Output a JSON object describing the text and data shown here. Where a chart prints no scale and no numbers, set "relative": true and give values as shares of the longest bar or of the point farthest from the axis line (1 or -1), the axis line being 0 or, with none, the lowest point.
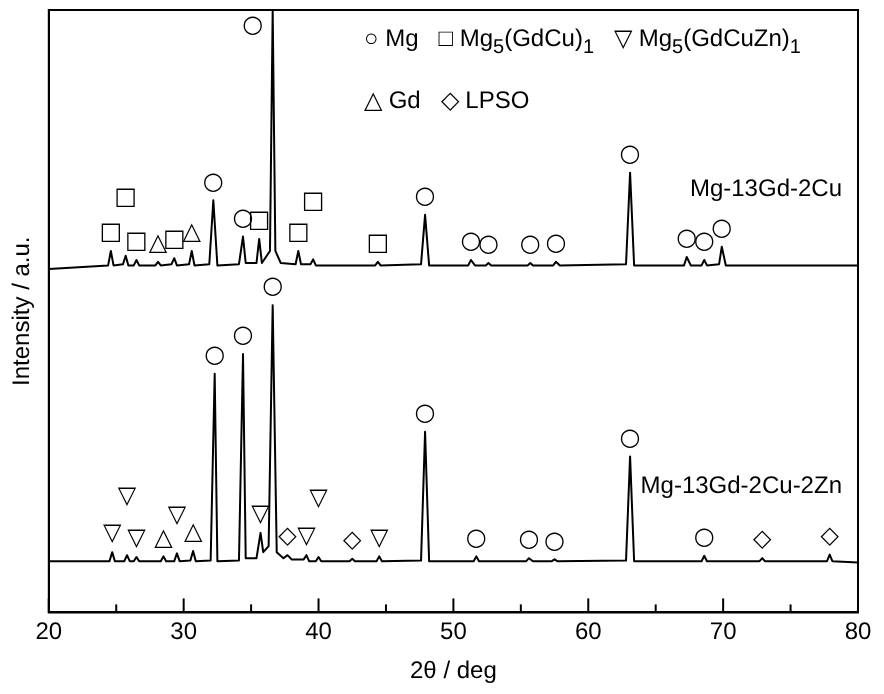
{
  "chart_data": {
    "type": "line",
    "relative": true,
    "xlabel": "2θ / deg",
    "ylabel": "Intensity / a.u.",
    "xlim": [
      20,
      80
    ],
    "xticks": [
      20,
      {
        "value": 25,
        "label": null
      },
      30,
      {
        "value": 35,
        "label": null
      },
      40,
      {
        "value": 45,
        "label": null
      },
      50,
      {
        "value": 55,
        "label": null
      },
      60,
      {
        "value": 65,
        "label": null
      },
      70,
      {
        "value": 75,
        "label": null
      },
      80
    ],
    "legend": false,
    "marker": "none",
    "line_style": "solid",
    "series": [
      {
        "name": "Mg-13Gd-2Cu",
        "color": "#000000",
        "x": [
          20,
          24.4,
          24.6,
          24.8,
          25.5,
          25.7,
          25.9,
          26.3,
          26.5,
          26.7,
          27.9,
          28.1,
          28.3,
          29.1,
          29.3,
          29.5,
          30.4,
          30.6,
          30.8,
          31.9,
          32.2,
          32.5,
          34.1,
          34.4,
          34.6,
          35.4,
          35.6,
          35.8,
          36.4,
          36.6,
          36.8,
          37.2,
          38.3,
          38.5,
          38.7,
          39.4,
          39.6,
          39.8,
          44.2,
          44.4,
          44.6,
          47.6,
          47.9,
          48.2,
          51.1,
          51.3,
          51.6,
          52.4,
          52.6,
          52.8,
          55.5,
          55.7,
          55.9,
          57.4,
          57.6,
          57.9,
          62.8,
          63.1,
          63.4,
          67.1,
          67.3,
          67.6,
          68.4,
          68.6,
          68.8,
          69.7,
          69.9,
          70.2,
          80
        ],
        "values": [
          0.57,
          0.576,
          0.6,
          0.576,
          0.578,
          0.592,
          0.576,
          0.576,
          0.585,
          0.576,
          0.576,
          0.582,
          0.576,
          0.578,
          0.588,
          0.576,
          0.578,
          0.6,
          0.576,
          0.578,
          0.684,
          0.576,
          0.578,
          0.624,
          0.58,
          0.58,
          0.62,
          0.58,
          0.6,
          1,
          0.6,
          0.58,
          0.578,
          0.6,
          0.578,
          0.578,
          0.586,
          0.576,
          0.576,
          0.582,
          0.576,
          0.578,
          0.66,
          0.576,
          0.576,
          0.585,
          0.576,
          0.576,
          0.58,
          0.576,
          0.576,
          0.58,
          0.576,
          0.576,
          0.582,
          0.576,
          0.578,
          0.73,
          0.576,
          0.576,
          0.59,
          0.576,
          0.576,
          0.585,
          0.576,
          0.578,
          0.607,
          0.576,
          0.576
        ]
      },
      {
        "name": "Mg-13Gd-2Cu-2Zn",
        "color": "#000000",
        "x": [
          20,
          24.5,
          24.7,
          24.9,
          25.6,
          25.8,
          26,
          26.3,
          26.5,
          26.7,
          28.3,
          28.5,
          28.7,
          29.3,
          29.5,
          29.7,
          30.5,
          30.7,
          30.9,
          32,
          32.3,
          32.5,
          34.1,
          34.4,
          34.6,
          35.4,
          35.7,
          35.9,
          36.3,
          36.6,
          36.9,
          37.4,
          37.7,
          38,
          38.9,
          39.1,
          39.3,
          39.8,
          40,
          40.2,
          42.3,
          42.5,
          42.7,
          44.3,
          44.5,
          44.7,
          47.6,
          47.9,
          48.2,
          51.5,
          51.7,
          51.9,
          55.4,
          55.6,
          55.9,
          57.3,
          57.5,
          57.7,
          62.8,
          63.1,
          63.4,
          68.4,
          68.6,
          68.8,
          72.7,
          72.9,
          73.1,
          77.7,
          77.9,
          78.1,
          80
        ],
        "values": [
          0.085,
          0.085,
          0.1,
          0.085,
          0.085,
          0.095,
          0.085,
          0.085,
          0.092,
          0.085,
          0.085,
          0.093,
          0.085,
          0.085,
          0.098,
          0.085,
          0.086,
          0.102,
          0.085,
          0.086,
          0.396,
          0.085,
          0.086,
          0.429,
          0.09,
          0.09,
          0.132,
          0.1,
          0.11,
          0.51,
          0.1,
          0.09,
          0.095,
          0.088,
          0.088,
          0.095,
          0.085,
          0.085,
          0.092,
          0.085,
          0.085,
          0.089,
          0.085,
          0.085,
          0.093,
          0.085,
          0.086,
          0.3,
          0.085,
          0.085,
          0.093,
          0.085,
          0.085,
          0.09,
          0.085,
          0.085,
          0.088,
          0.085,
          0.086,
          0.259,
          0.085,
          0.085,
          0.094,
          0.085,
          0.085,
          0.09,
          0.085,
          0.085,
          0.096,
          0.085,
          0.083
        ]
      }
    ],
    "annotations": [
      "○ Mg",
      "□ Mg$_{5}$(GdCu)$_{1}$",
      "▽ Mg$_{5}$(GdCuZn)$_{1}$",
      "△ Gd",
      "◇ LPSO",
      {
        "text": "□",
        "x": 24.6,
        "y": 0.6
      },
      {
        "text": "□",
        "x": 25.7,
        "y": 0.592
      },
      {
        "text": "□",
        "x": 26.5,
        "y": 0.585
      },
      {
        "text": "△",
        "x": 28.1,
        "y": 0.582
      },
      {
        "text": "□",
        "x": 29.3,
        "y": 0.588
      },
      {
        "text": "△",
        "x": 30.6,
        "y": 0.6
      },
      {
        "text": "○",
        "x": 32.2,
        "y": 0.684
      },
      {
        "text": "○",
        "x": 34.4,
        "y": 0.624
      },
      {
        "text": "□",
        "x": 35.6,
        "y": 0.62
      },
      {
        "text": "○",
        "x": 36.6,
        "y": 1
      },
      {
        "text": "□",
        "x": 38.5,
        "y": 0.6
      },
      {
        "text": "□",
        "x": 39.6,
        "y": 0.586
      },
      {
        "text": "□",
        "x": 44.4,
        "y": 0.582
      },
      {
        "text": "○",
        "x": 47.9,
        "y": 0.66
      },
      {
        "text": "○",
        "x": 51.3,
        "y": 0.585
      },
      {
        "text": "○",
        "x": 52.6,
        "y": 0.58
      },
      {
        "text": "○",
        "x": 55.7,
        "y": 0.58
      },
      {
        "text": "○",
        "x": 57.6,
        "y": 0.582
      },
      {
        "text": "○",
        "x": 63.1,
        "y": 0.73
      },
      {
        "text": "○",
        "x": 67.3,
        "y": 0.59
      },
      {
        "text": "○",
        "x": 68.6,
        "y": 0.585
      },
      {
        "text": "○",
        "x": 69.9,
        "y": 0.607
      },
      {
        "text": "○",
        "x": 36.6,
        "y": 0.51
      },
      {
        "text": "○",
        "x": 32.3,
        "y": 0.396
      },
      {
        "text": "○",
        "x": 34.4,
        "y": 0.429
      },
      {
        "text": "▽",
        "x": 24.7,
        "y": 0.1
      },
      {
        "text": "▽",
        "x": 25.8,
        "y": 0.095
      },
      {
        "text": "▽",
        "x": 26.5,
        "y": 0.092
      },
      {
        "text": "△",
        "x": 28.5,
        "y": 0.093
      },
      {
        "text": "▽",
        "x": 29.5,
        "y": 0.098
      },
      {
        "text": "△",
        "x": 30.7,
        "y": 0.102
      },
      {
        "text": "▽",
        "x": 35.7,
        "y": 0.132
      },
      {
        "text": "◇",
        "x": 37.7,
        "y": 0.095
      },
      {
        "text": "▽",
        "x": 39.1,
        "y": 0.095
      },
      {
        "text": "▽",
        "x": 40,
        "y": 0.092
      },
      {
        "text": "◇",
        "x": 42.5,
        "y": 0.089
      },
      {
        "text": "▽",
        "x": 44.5,
        "y": 0.093
      },
      {
        "text": "○",
        "x": 47.9,
        "y": 0.3
      },
      {
        "text": "○",
        "x": 51.7,
        "y": 0.093
      },
      {
        "text": "○",
        "x": 55.6,
        "y": 0.09
      },
      {
        "text": "○",
        "x": 57.5,
        "y": 0.088
      },
      {
        "text": "○",
        "x": 63.1,
        "y": 0.259
      },
      {
        "text": "○",
        "x": 68.6,
        "y": 0.094
      },
      {
        "text": "◇",
        "x": 72.9,
        "y": 0.09
      },
      {
        "text": "◇",
        "x": 77.9,
        "y": 0.096
      }
    ]
  }
}
